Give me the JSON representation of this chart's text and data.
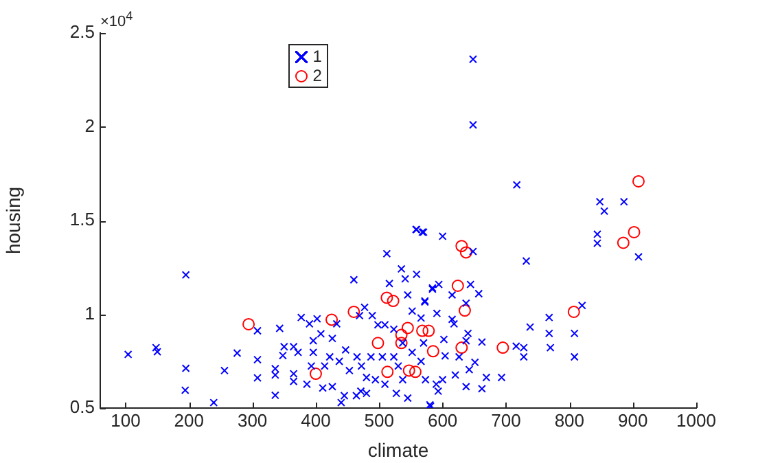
{
  "chart_data": {
    "type": "scatter",
    "xlabel": "climate",
    "ylabel": "housing",
    "annotations": [
      "×10$^{4}$"
    ],
    "xlim": [
      60,
      1000
    ],
    "xticks": [
      100,
      200,
      300,
      400,
      500,
      600,
      700,
      800,
      900,
      1000
    ],
    "ylim": [
      0.5,
      2.5
    ],
    "yticks": [
      0.5,
      1,
      1.5,
      2,
      2.5
    ],
    "grid": false,
    "legend": "top left",
    "series": [
      {
        "name": "1",
        "color": "#0000ff",
        "marker": "cross",
        "x": [
          648,
          648,
          717,
          848,
          886,
          855,
          844,
          844,
          909,
          732,
          648,
          600,
          568,
          559,
          820,
          768,
          738,
          768,
          808,
          770,
          716,
          728,
          728,
          808,
          693,
          669,
          662,
          637,
          581,
          644,
          657,
          594,
          584,
          615,
          637,
          615,
          618,
          640,
          662,
          637,
          626,
          651,
          642,
          602,
          604,
          620,
          600,
          593,
          572,
          104,
          148,
          150,
          195,
          195,
          194,
          239,
          256,
          276,
          308,
          308,
          308,
          336,
          336,
          336,
          343,
          350,
          348,
          365,
          365,
          365,
          377,
          386,
          402,
          390,
          396,
          414,
          411,
          426,
          433,
          426,
          440,
          460,
          477,
          469,
          489,
          498,
          512,
          516,
          535,
          559,
          558,
          570,
          545,
          572,
          584,
          445,
          464,
          471,
          480,
          465,
          447,
          453,
          472,
          487,
          480,
          494,
          505,
          509,
          523,
          530,
          537,
          527,
          545,
          552,
          566,
          573,
          580,
          590,
          408,
          396,
          422,
          437,
          372,
          393,
          541,
          523,
          552,
          566,
          591,
          570,
          537,
          509
        ],
        "values": [
          2.36,
          2.01,
          1.69,
          1.6,
          1.6,
          1.55,
          1.427,
          1.379,
          1.306,
          1.284,
          1.335,
          1.416,
          1.438,
          1.452,
          1.047,
          0.983,
          0.932,
          0.898,
          0.898,
          0.822,
          0.83,
          0.822,
          0.773,
          0.773,
          0.663,
          0.663,
          0.603,
          0.614,
          0.51,
          1.159,
          1.11,
          1.159,
          1.134,
          1.103,
          1.059,
          0.973,
          0.949,
          0.898,
          0.852,
          0.859,
          0.773,
          0.744,
          0.705,
          0.866,
          0.778,
          0.676,
          0.651,
          0.59,
          1.071,
          0.786,
          0.822,
          0.8,
          1.21,
          0.712,
          0.595,
          0.529,
          0.7,
          0.793,
          0.912,
          0.758,
          0.661,
          0.676,
          0.71,
          0.568,
          0.925,
          0.827,
          0.78,
          0.827,
          0.683,
          0.642,
          0.983,
          0.627,
          0.976,
          0.949,
          0.797,
          0.724,
          0.607,
          0.614,
          0.949,
          0.871,
          0.529,
          1.184,
          1.037,
          0.993,
          0.993,
          0.944,
          1.323,
          1.164,
          1.242,
          1.213,
          1.452,
          1.438,
          1.103,
          1.066,
          1.14,
          0.566,
          0.566,
          0.59,
          0.578,
          0.773,
          0.81,
          0.7,
          0.724,
          0.773,
          0.663,
          0.651,
          0.773,
          0.627,
          0.773,
          0.724,
          0.651,
          0.578,
          0.553,
          0.797,
          0.749,
          0.651,
          0.517,
          0.627,
          0.896,
          0.859,
          0.773,
          0.749,
          0.797,
          0.724,
          1.189,
          0.92,
          1.017,
          0.98,
          1.005,
          0.847,
          0.847,
          0.944
        ]
      },
      {
        "name": "2",
        "color": "#ff0000",
        "marker": "circle",
        "x": [
          294,
          400,
          425,
          460,
          498,
          512,
          522,
          513,
          535,
          535,
          545,
          547,
          557,
          568,
          578,
          585,
          630,
          637,
          624,
          635,
          630,
          695,
          807,
          885,
          902,
          909
        ],
        "values": [
          0.947,
          0.683,
          0.971,
          1.013,
          0.847,
          1.088,
          1.071,
          0.693,
          0.89,
          0.847,
          0.927,
          0.7,
          0.693,
          0.912,
          0.912,
          0.803,
          1.364,
          1.33,
          1.152,
          1.02,
          0.822,
          0.822,
          1.013,
          1.381,
          1.438,
          1.709
        ]
      }
    ]
  }
}
